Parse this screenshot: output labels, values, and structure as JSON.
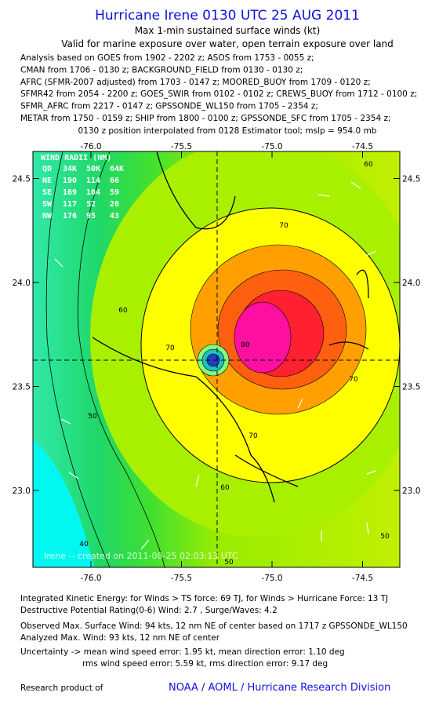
{
  "header": {
    "title": "Hurricane Irene 0130 UTC 25 AUG 2011",
    "subtitle": "Max 1-min sustained surface winds (kt)",
    "validity": "Valid for marine exposure over water, open terrain exposure over land",
    "sources": [
      "Analysis based on GOES from 1902 - 2202 z; ASOS from 1753 - 0055 z;",
      "CMAN from 1706 - 0130 z; BACKGROUND_FIELD from 0130 - 0130 z;",
      "AFRC (SFMR-2007 adjusted) from 1703 - 0147 z; MOORED_BUOY from 1709 - 0120 z;",
      "SFMR42 from 2054 - 2200 z; GOES_SWIR from 0102 - 0102 z; CREWS_BUOY from 1712 - 0100 z;",
      "SFMR_AFRC from 2217 - 0147 z; GPSSONDE_WL150 from 1705 - 2354 z;",
      "METAR from 1750 - 0159 z; SHIP from 1800 - 0100 z; GPSSONDE_SFC from 1705 - 2354 z;"
    ],
    "position": "0130 z position interpolated from 0128 Estimator tool; mslp = 954.0 mb"
  },
  "map": {
    "xticks": [
      {
        "value": -76.0,
        "label": "-76.0"
      },
      {
        "value": -75.5,
        "label": "-75.5"
      },
      {
        "value": -75.0,
        "label": "-75.0"
      },
      {
        "value": -74.5,
        "label": "-74.5"
      }
    ],
    "yticks": [
      {
        "value": 24.5,
        "label": "24.5"
      },
      {
        "value": 24.0,
        "label": "24.0"
      },
      {
        "value": 23.5,
        "label": "23.5"
      },
      {
        "value": 23.0,
        "label": "23.0"
      }
    ],
    "wind_radii": {
      "title": "WIND RADII (NM)",
      "rows": [
        [
          "QD",
          "34K",
          "50K",
          "64K"
        ],
        [
          "NE",
          "190",
          "114",
          "66"
        ],
        [
          "SE",
          "169",
          "104",
          "59"
        ],
        [
          "SW",
          "117",
          "52",
          "26"
        ],
        [
          "NW",
          "176",
          "95",
          "43"
        ]
      ]
    },
    "contour_labels": [
      "60",
      "70",
      "60",
      "70",
      "80",
      "70",
      "70",
      "60",
      "50",
      "40",
      "50",
      "50"
    ],
    "credit": "Irene -- created on 2011-08-25 02:03:13 UTC"
  },
  "footer": {
    "lines": [
      "Integrated Kinetic Energy:  for Winds > TS force: 69 TJ,  for Winds > Hurricane Force: 13 TJ",
      "Destructive Potential Rating(0-6)   Wind: 2.7 , Surge/Waves: 4.2",
      "Observed Max. Surface Wind: 94 kts, 12 nm NE of center based on 1717 z GPSSONDE_WL150",
      "Analyzed Max. Wind: 93 kts, 12 nm NE of center",
      "Uncertainty -> mean wind speed error: 1.95 kt,   mean direction error: 1.10 deg",
      "rms wind speed error: 5.59 kt,   rms direction error: 9.17 deg"
    ],
    "product_label": "Research product of",
    "organization": "NOAA / AOML / Hurricane Research Division"
  }
}
